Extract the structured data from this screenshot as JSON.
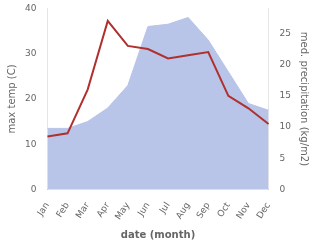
{
  "chart_data": {
    "type": "line",
    "xlabel": "date (month)",
    "ylabel": "max temp (C)",
    "y2label": "med. precipitation (kg/m2)",
    "categories": [
      "Jan",
      "Feb",
      "Mar",
      "Apr",
      "May",
      "Jun",
      "Jul",
      "Aug",
      "Sep",
      "Oct",
      "Nov",
      "Dec"
    ],
    "series": [
      {
        "type": "area",
        "color": "#b8c4e8",
        "values": [
          13.5,
          13.5,
          15.0,
          18.0,
          23.0,
          36.0,
          36.5,
          38.0,
          33.0,
          26.0,
          19.0,
          17.5
        ]
      },
      {
        "type": "line",
        "color": "#b03030",
        "axis": "y2",
        "values": [
          8.5,
          9.0,
          16.0,
          27.0,
          23.0,
          22.5,
          21.0,
          21.5,
          22.0,
          15.0,
          13.0,
          10.5
        ]
      }
    ],
    "ylim": [
      0,
      40
    ],
    "yticks": [
      0,
      10,
      20,
      30,
      40
    ],
    "y2lim": [
      0,
      29
    ],
    "y2ticks": [
      0,
      5,
      10,
      15,
      20,
      25
    ],
    "grid": false
  }
}
